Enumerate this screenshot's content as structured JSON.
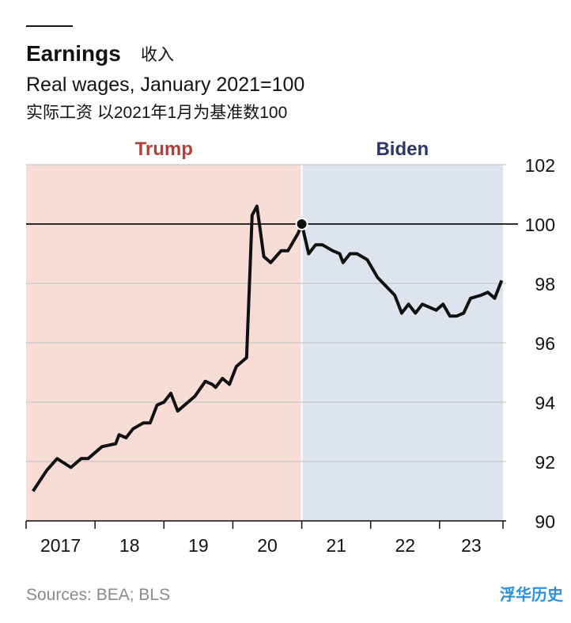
{
  "chart_data": {
    "type": "line",
    "title": "Earnings",
    "title_cn": "收入",
    "subtitle": "Real wages, January 2021=100",
    "subtitle_cn": "实际工资 以2021年1月为基准数100",
    "source": "Sources: BEA; BLS",
    "watermark": "浮华历史",
    "color": "#111111",
    "x": [
      2017.1,
      2017.3,
      2017.45,
      2017.65,
      2017.8,
      2017.9,
      2018.1,
      2018.3,
      2018.35,
      2018.45,
      2018.55,
      2018.7,
      2018.8,
      2018.9,
      2019.0,
      2019.1,
      2019.2,
      2019.45,
      2019.6,
      2019.7,
      2019.75,
      2019.85,
      2019.95,
      2020.05,
      2020.2,
      2020.28,
      2020.35,
      2020.45,
      2020.55,
      2020.7,
      2020.8,
      2020.95,
      2021.0,
      2021.1,
      2021.2,
      2021.3,
      2021.45,
      2021.55,
      2021.6,
      2021.7,
      2021.8,
      2021.95,
      2022.1,
      2022.35,
      2022.45,
      2022.55,
      2022.65,
      2022.75,
      2022.95,
      2023.05,
      2023.15,
      2023.25,
      2023.35,
      2023.45,
      2023.6,
      2023.7,
      2023.8,
      2023.9
    ],
    "values": [
      91.0,
      91.7,
      92.1,
      91.8,
      92.1,
      92.1,
      92.5,
      92.6,
      92.9,
      92.8,
      93.1,
      93.3,
      93.3,
      93.9,
      94.0,
      94.3,
      93.7,
      94.2,
      94.7,
      94.6,
      94.5,
      94.8,
      94.6,
      95.2,
      95.5,
      100.3,
      100.6,
      98.9,
      98.7,
      99.1,
      99.1,
      99.7,
      100,
      99.0,
      99.3,
      99.3,
      99.1,
      99.0,
      98.7,
      99.0,
      99.0,
      98.8,
      98.2,
      97.6,
      97.0,
      97.3,
      97.0,
      97.3,
      97.1,
      97.3,
      96.9,
      96.9,
      97.0,
      97.5,
      97.6,
      97.7,
      97.5,
      98.1
    ],
    "marker": {
      "x": 2021,
      "value": 100
    },
    "reference_line": 100,
    "shading": [
      {
        "label": "Trump",
        "start": 2017,
        "end": 2021,
        "color": "#f8ddd7",
        "label_color": "#b0413b"
      },
      {
        "label": "Biden",
        "start": 2021,
        "end": 2023.92,
        "color": "#dde4ee",
        "label_color": "#2a3768"
      }
    ],
    "xlim": [
      2017,
      2023.92
    ],
    "xticks": [
      {
        "value": 2017,
        "label": "2017"
      },
      {
        "value": 2018,
        "label": "18"
      },
      {
        "value": 2019,
        "label": "19"
      },
      {
        "value": 2020,
        "label": "20"
      },
      {
        "value": 2021,
        "label": "21"
      },
      {
        "value": 2022,
        "label": "22"
      },
      {
        "value": 2023,
        "label": "23"
      }
    ],
    "ylim": [
      90,
      102
    ],
    "yticks": [
      90,
      92,
      94,
      96,
      98,
      100,
      102
    ],
    "grid": true
  }
}
